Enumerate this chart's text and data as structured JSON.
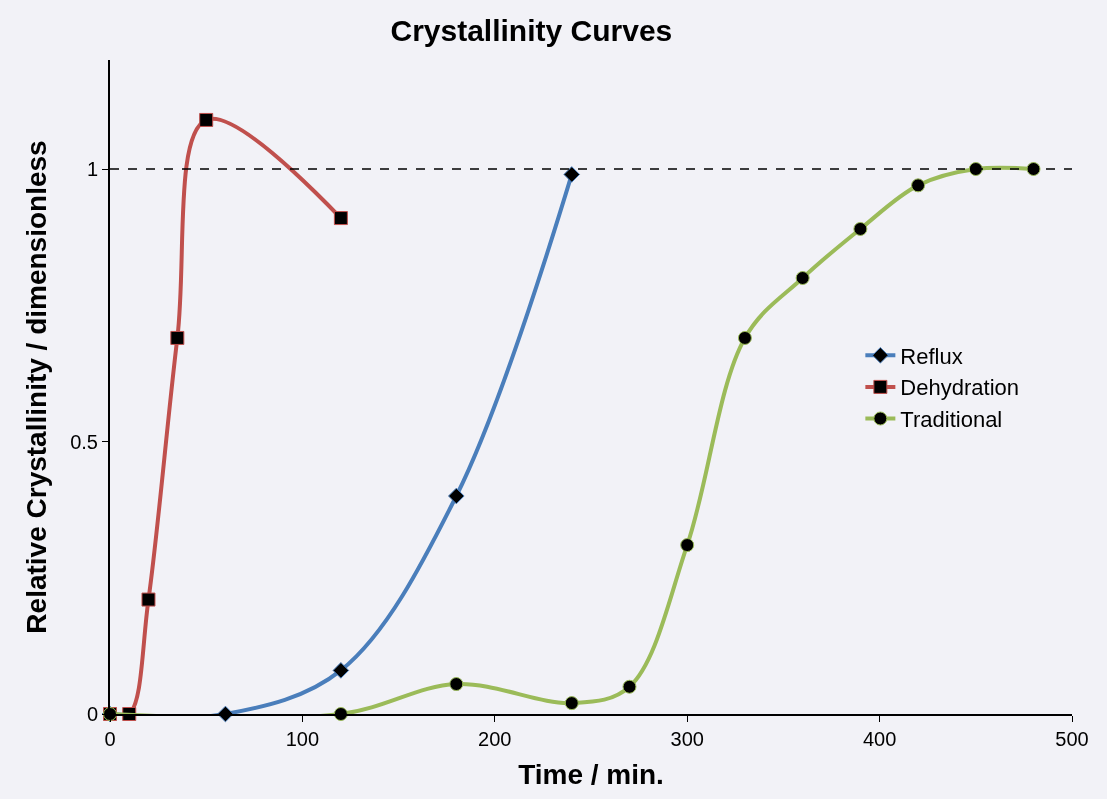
{
  "chart_data": {
    "type": "line",
    "title": "Crystallinity Curves",
    "xlabel": "Time / min.",
    "ylabel": "Relative Crystallinity / dimensionless",
    "xlim": [
      0,
      500
    ],
    "xticks": [
      0,
      100,
      200,
      300,
      400,
      500
    ],
    "ylim": [
      0,
      1.2
    ],
    "yticks": [
      0,
      0.5,
      1
    ],
    "grid": false,
    "legend": "right",
    "line_style": "solid",
    "ref_lines": [
      {
        "axis": "y",
        "value": 1,
        "color": "#000000",
        "line_style": "dashed"
      }
    ],
    "series": [
      {
        "name": "Reflux",
        "color": "#4a7ebb",
        "marker": "diamond",
        "x": [
          0,
          60,
          120,
          180,
          240
        ],
        "values": [
          0,
          0,
          0.08,
          0.4,
          0.99
        ]
      },
      {
        "name": "Dehydration",
        "color": "#c0504d",
        "marker": "square",
        "x": [
          0,
          10,
          20,
          35,
          50,
          120
        ],
        "values": [
          0,
          0,
          0.21,
          0.69,
          1.09,
          0.91
        ]
      },
      {
        "name": "Traditional",
        "color": "#9bbb59",
        "marker": "circle",
        "x": [
          0,
          120,
          180,
          240,
          270,
          300,
          330,
          360,
          390,
          420,
          450,
          480
        ],
        "values": [
          0,
          0,
          0.055,
          0.02,
          0.05,
          0.31,
          0.69,
          0.8,
          0.89,
          0.97,
          1.0,
          1.0
        ]
      }
    ]
  }
}
